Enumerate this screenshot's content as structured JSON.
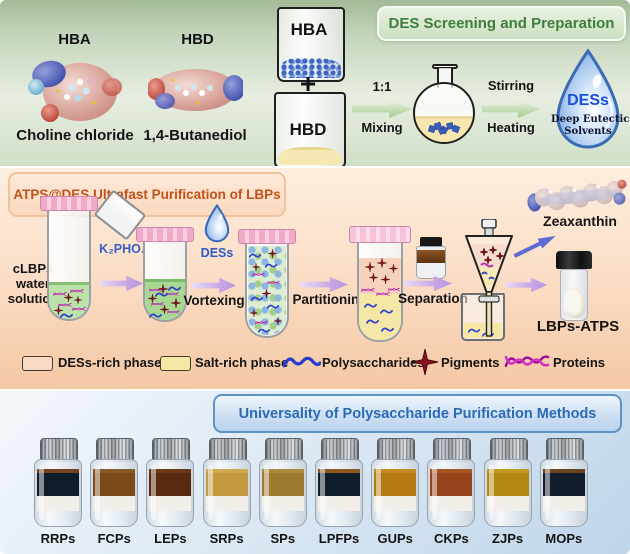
{
  "top": {
    "title": "DES Screening and Preparation",
    "hba_label": "HBA",
    "hba_name": "Choline chloride",
    "hbd_label": "HBD",
    "hbd_name": "1,4-Butanediol",
    "beaker1_label": "HBA",
    "beaker2_label": "HBD",
    "plus": "+",
    "mix1": "1:1",
    "mix2": "Mixing",
    "heat1": "Stirring",
    "heat2": "Heating",
    "drop_acronym": "DESs",
    "drop_line1": "Deep Eutectic",
    "drop_line2": "Solvents"
  },
  "middle": {
    "title": "ATPS@DES Ultrafast Purification of LBPs",
    "sample1": "cLBPs",
    "sample2": "water",
    "sample3": "solution",
    "salt_label": "K₂PHO₄",
    "des_drop_label": "DESs",
    "vortexing": "Vortexing",
    "partitioning": "Partitioning",
    "separation": "Separation",
    "zeaxanthin": "Zeaxanthin",
    "product": "LBPs-ATPS",
    "legend": {
      "des_phase": "DESs-rich phase",
      "salt_phase": "Salt-rich phase",
      "polysaccharides": "Polysaccharides",
      "pigments": "Pigments",
      "proteins": "Proteins"
    }
  },
  "bottom": {
    "title": "Universality of Polysaccharide Purification Methods",
    "vials": [
      {
        "label": "RRPs",
        "liquid": "#0f1c29",
        "rim": "#74431f"
      },
      {
        "label": "FCPs",
        "liquid": "#7a4a1a",
        "rim": "#8a5a26"
      },
      {
        "label": "LEPs",
        "liquid": "#582a10",
        "rim": "#6e3a16"
      },
      {
        "label": "SRPs",
        "liquid": "#c39a40",
        "rim": "#cfa950"
      },
      {
        "label": "SPs",
        "liquid": "#9c7b30",
        "rim": "#ab8a3e"
      },
      {
        "label": "LPFPs",
        "liquid": "#0f1c2a",
        "rim": "#8a5a1e"
      },
      {
        "label": "GUPs",
        "liquid": "#b47a14",
        "rim": "#c28b20"
      },
      {
        "label": "CKPs",
        "liquid": "#95431a",
        "rim": "#a85522"
      },
      {
        "label": "ZJPs",
        "liquid": "#b28910",
        "rim": "#c09a1e"
      },
      {
        "label": "MOPs",
        "liquid": "#121d2b",
        "rim": "#6b451f"
      }
    ]
  },
  "colors": {
    "top_title_text": "#3e7d3c",
    "mid_title_text": "#c2521b",
    "bottom_title_text": "#2a6ab8",
    "polysaccharide_blue": "#2b3bd0",
    "pigment_red": "#8e1020",
    "protein_magenta": "#c42cb8",
    "des_phase_swatch": "#f7d9c4",
    "salt_phase_swatch": "#f5e8a6"
  }
}
